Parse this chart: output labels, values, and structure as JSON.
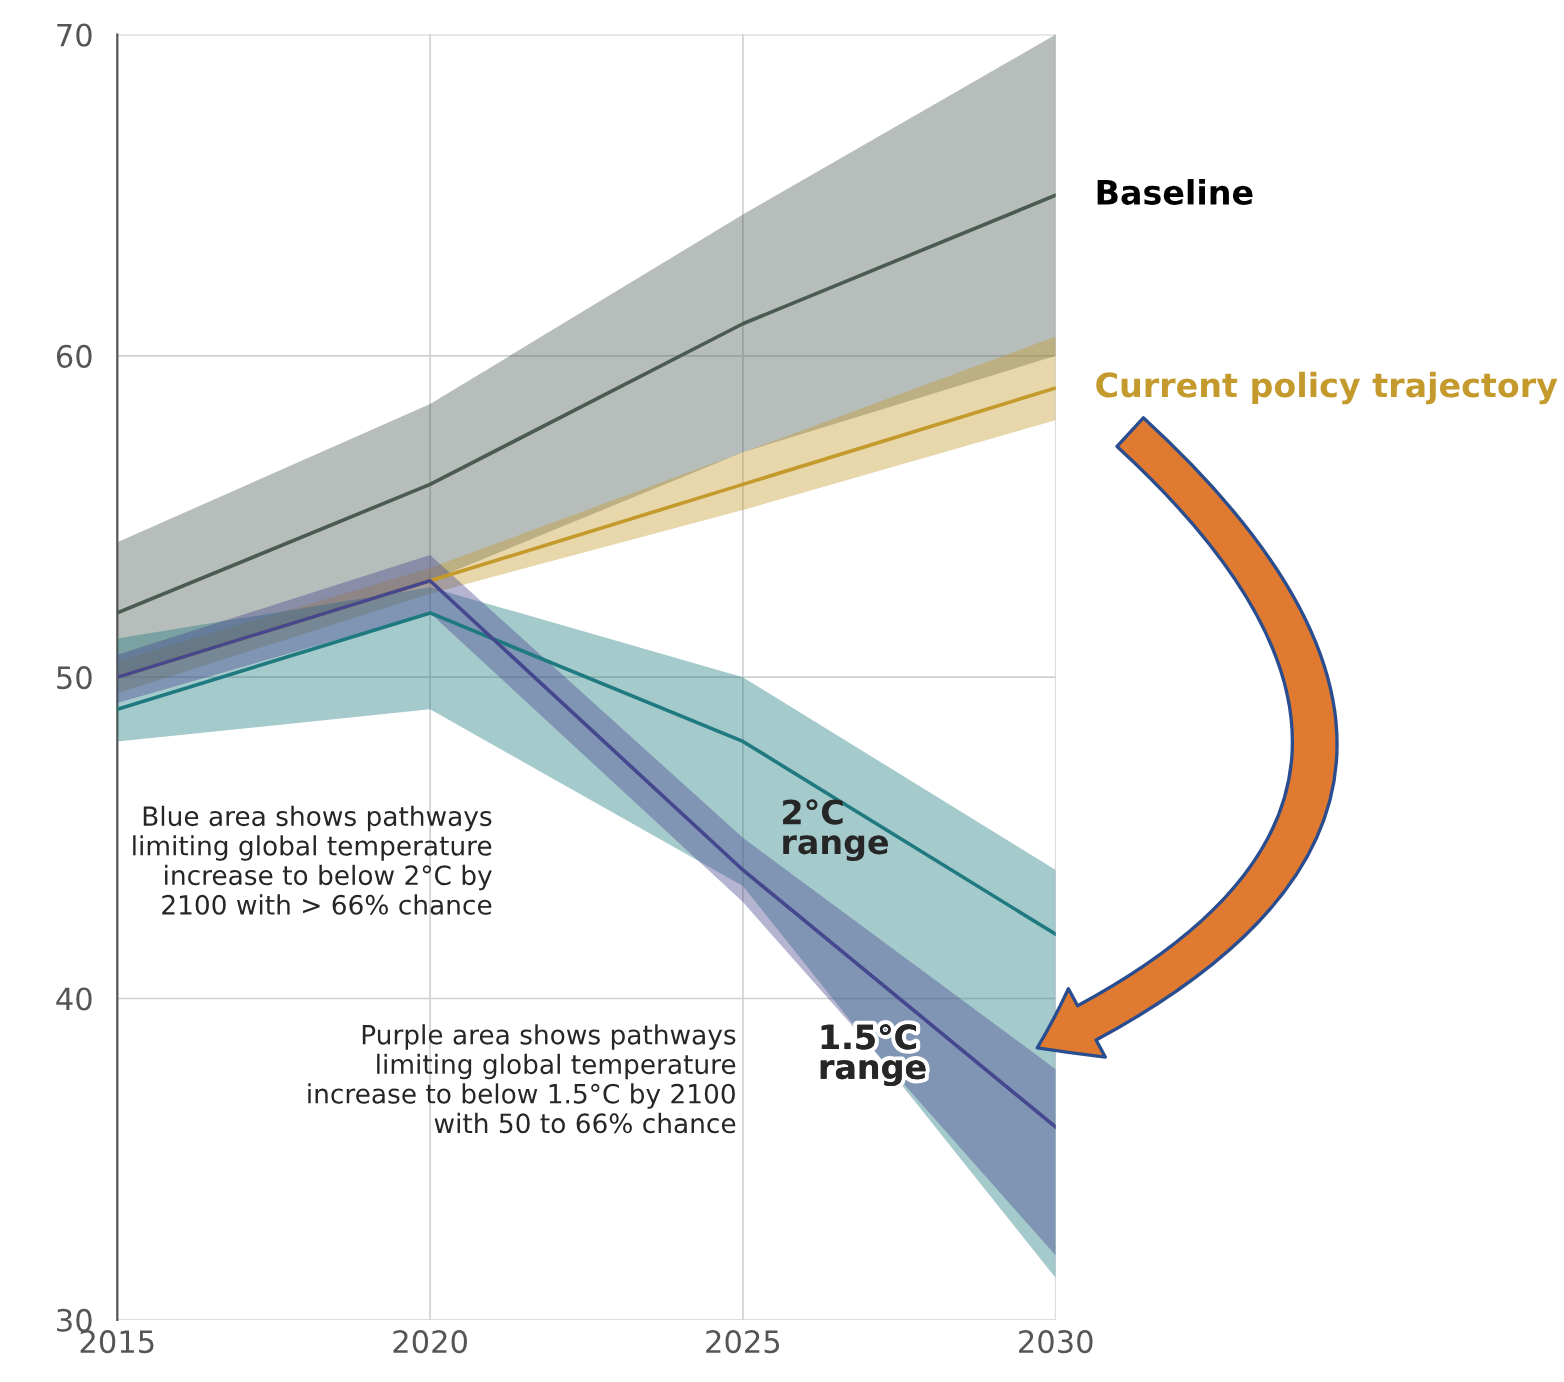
{
  "chart_data": {
    "type": "line",
    "x": [
      2015,
      2020,
      2025,
      2030
    ],
    "xlim": [
      2015,
      2030
    ],
    "xticks": [
      2015,
      2020,
      2025,
      2030
    ],
    "ylim": [
      30,
      70
    ],
    "yticks": [
      30,
      40,
      50,
      60,
      70
    ],
    "grid": true,
    "marker": "none",
    "line_style": "solid",
    "series": [
      {
        "name": "Baseline",
        "color": "#4b5b52",
        "values": [
          52,
          56,
          61,
          65
        ],
        "lower": [
          50,
          53,
          57,
          60
        ],
        "upper": [
          54.2,
          58.5,
          64.4,
          70
        ]
      },
      {
        "name": "Current policy trajectory",
        "color": "#c49a2c",
        "values": [
          50,
          53,
          56,
          59
        ],
        "lower": [
          49.5,
          52.6,
          55.2,
          58
        ],
        "upper": [
          50.5,
          53.4,
          57,
          60.6
        ]
      },
      {
        "name": "2°C range",
        "color": "#1f7a80",
        "values": [
          49,
          52,
          48,
          42
        ],
        "lower": [
          48,
          49,
          43.5,
          31.3
        ],
        "upper": [
          51.2,
          52.8,
          50,
          44
        ]
      },
      {
        "name": "1.5°C range",
        "color": "#45478f",
        "values": [
          50,
          53,
          44,
          36
        ],
        "lower": [
          49.2,
          52,
          43,
          32
        ],
        "upper": [
          50.7,
          53.8,
          45,
          37.8
        ]
      }
    ],
    "annotations": [
      "Blue area shows pathways limiting global temperature increase to below 2°C by 2100 with > 66% chance",
      "Purple area shows pathways limiting global temperature increase to below 1.5°C by 2100 with 50 to 66% chance"
    ]
  }
}
